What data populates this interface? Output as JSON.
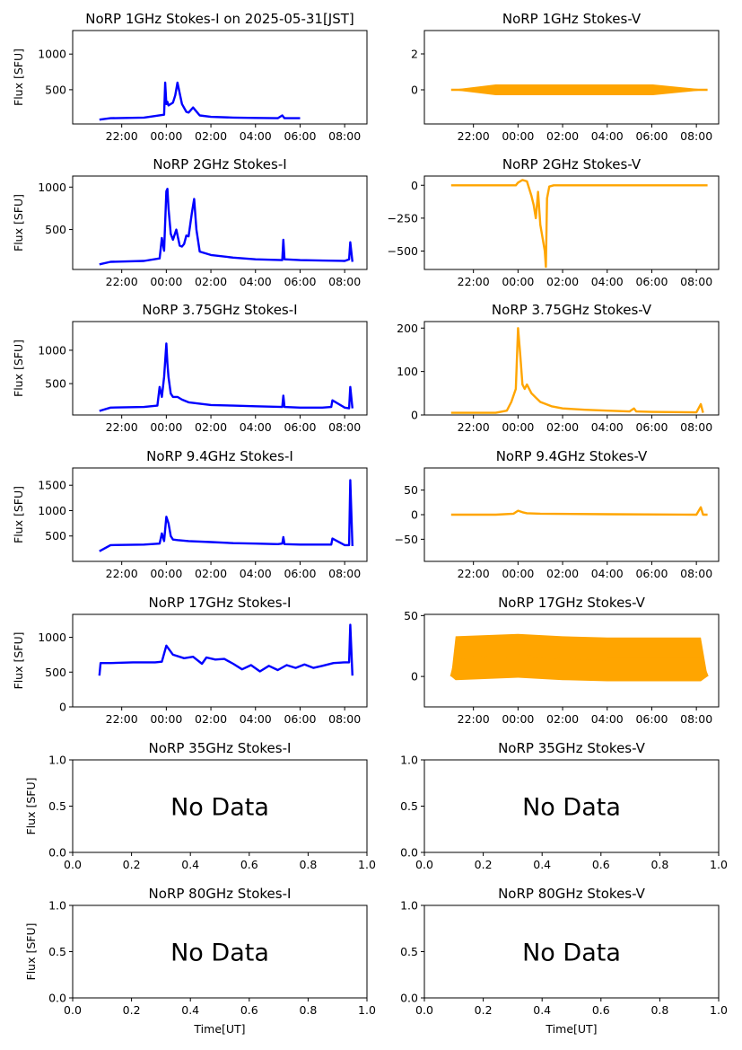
{
  "figure": {
    "x_time_ticks": [
      "22:00",
      "00:00",
      "02:00",
      "04:00",
      "06:00",
      "08:00"
    ],
    "x_time_tick_hours": [
      -2,
      0,
      2,
      4,
      6,
      8
    ],
    "x_time_range_hours": [
      -4.2,
      9.0
    ],
    "x_unit_ticks": [
      "0.0",
      "0.2",
      "0.4",
      "0.6",
      "0.8",
      "1.0"
    ],
    "y_unit_ticks": [
      "0.0",
      "0.5",
      "1.0"
    ],
    "ylabel": "Flux [SFU]",
    "xlabel": "Time[UT]",
    "no_data_text": "No Data",
    "colors": {
      "stokes_i": "#0000ff",
      "stokes_v": "#ffa500"
    }
  },
  "chart_data": [
    {
      "type": "line",
      "title": "NoRP 1GHz Stokes-I on 2025-05-31[JST]",
      "column": "I",
      "row": 0,
      "has_data": true,
      "ylim": [
        20,
        1330
      ],
      "yticks": [
        500,
        1000
      ],
      "series": [
        {
          "name": "Stokes-I",
          "x": [
            -3.0,
            -2.5,
            -1.0,
            -0.1,
            -0.05,
            0.0,
            0.05,
            0.1,
            0.3,
            0.4,
            0.5,
            0.6,
            0.7,
            0.9,
            1.0,
            1.2,
            1.5,
            2.0,
            3.0,
            4.0,
            5.0,
            5.2,
            5.3,
            6.0
          ],
          "y": [
            80,
            100,
            110,
            150,
            600,
            300,
            330,
            280,
            320,
            420,
            600,
            450,
            300,
            190,
            180,
            250,
            140,
            120,
            110,
            105,
            100,
            140,
            100,
            100
          ]
        }
      ]
    },
    {
      "type": "line",
      "title": "NoRP 1GHz Stokes-V",
      "column": "V",
      "row": 0,
      "has_data": true,
      "ylim": [
        -1.9,
        3.3
      ],
      "yticks": [
        0,
        2
      ],
      "series": [
        {
          "name": "Stokes-V",
          "x": [
            -3.0,
            -1.0,
            -0.5,
            0.0,
            0.5,
            1.0,
            2.0,
            4.0,
            6.0,
            6.05,
            8.5
          ],
          "y": [
            0.0,
            0.0,
            0.0,
            0.0,
            0.0,
            0.0,
            0.0,
            0.0,
            0.0,
            0.0,
            0.0
          ]
        }
      ]
    },
    {
      "type": "line",
      "title": "NoRP 2GHz Stokes-I",
      "column": "I",
      "row": 1,
      "has_data": true,
      "ylim": [
        30,
        1130
      ],
      "yticks": [
        500,
        1000
      ],
      "series": [
        {
          "name": "Stokes-I",
          "x": [
            -3.0,
            -2.5,
            -1.0,
            -0.3,
            -0.2,
            -0.1,
            0.0,
            0.05,
            0.1,
            0.2,
            0.3,
            0.45,
            0.6,
            0.7,
            0.8,
            0.9,
            1.0,
            1.15,
            1.25,
            1.35,
            1.5,
            2.0,
            3.0,
            4.0,
            5.2,
            5.25,
            5.3,
            6.0,
            7.0,
            8.0,
            8.2,
            8.25,
            8.35
          ],
          "y": [
            90,
            120,
            130,
            160,
            400,
            250,
            950,
            980,
            750,
            450,
            380,
            500,
            310,
            300,
            330,
            430,
            420,
            700,
            860,
            500,
            240,
            200,
            170,
            150,
            140,
            380,
            150,
            140,
            135,
            130,
            150,
            350,
            120
          ]
        }
      ]
    },
    {
      "type": "line",
      "title": "NoRP 2GHz Stokes-V",
      "column": "V",
      "row": 1,
      "has_data": true,
      "ylim": [
        -640,
        70
      ],
      "yticks": [
        -500,
        -250,
        0
      ],
      "series": [
        {
          "name": "Stokes-V",
          "x": [
            -3.0,
            -1.0,
            -0.1,
            0.0,
            0.2,
            0.4,
            0.6,
            0.7,
            0.8,
            0.9,
            1.0,
            1.1,
            1.2,
            1.25,
            1.3,
            1.4,
            1.6,
            2.0,
            4.0,
            6.0,
            8.0,
            8.5
          ],
          "y": [
            0,
            0,
            0,
            20,
            40,
            30,
            -80,
            -150,
            -250,
            -50,
            -300,
            -400,
            -500,
            -620,
            -100,
            -10,
            0,
            0,
            0,
            0,
            0,
            0
          ]
        }
      ]
    },
    {
      "type": "line",
      "title": "NoRP 3.75GHz Stokes-I",
      "column": "I",
      "row": 2,
      "has_data": true,
      "ylim": [
        30,
        1430
      ],
      "yticks": [
        500,
        1000
      ],
      "series": [
        {
          "name": "Stokes-I",
          "x": [
            -3.0,
            -2.5,
            -1.0,
            -0.4,
            -0.3,
            -0.2,
            -0.1,
            0.0,
            0.05,
            0.1,
            0.2,
            0.3,
            0.5,
            0.7,
            1.0,
            1.5,
            2.0,
            3.0,
            4.0,
            5.2,
            5.25,
            5.3,
            6.0,
            7.0,
            7.4,
            7.45,
            8.0,
            8.2,
            8.25,
            8.35
          ],
          "y": [
            90,
            140,
            150,
            170,
            450,
            300,
            600,
            1100,
            800,
            600,
            350,
            300,
            300,
            260,
            220,
            200,
            180,
            170,
            160,
            150,
            320,
            150,
            140,
            140,
            150,
            250,
            140,
            130,
            450,
            130
          ]
        }
      ]
    },
    {
      "type": "line",
      "title": "NoRP 3.75GHz Stokes-V",
      "column": "V",
      "row": 2,
      "has_data": true,
      "ylim": [
        0,
        215
      ],
      "yticks": [
        0,
        100,
        200
      ],
      "series": [
        {
          "name": "Stokes-V",
          "x": [
            -3.0,
            -1.0,
            -0.5,
            -0.3,
            -0.1,
            0.0,
            0.1,
            0.2,
            0.3,
            0.4,
            0.6,
            0.8,
            1.0,
            1.5,
            2.0,
            3.0,
            4.0,
            5.0,
            5.2,
            5.3,
            6.0,
            8.0,
            8.2,
            8.3
          ],
          "y": [
            5,
            5,
            10,
            30,
            60,
            200,
            140,
            70,
            60,
            70,
            50,
            40,
            30,
            20,
            15,
            12,
            10,
            8,
            15,
            8,
            7,
            6,
            25,
            5
          ]
        }
      ]
    },
    {
      "type": "line",
      "title": "NoRP 9.4GHz Stokes-I",
      "column": "I",
      "row": 3,
      "has_data": true,
      "ylim": [
        0,
        1840
      ],
      "yticks": [
        500,
        1000,
        1500
      ],
      "series": [
        {
          "name": "Stokes-I",
          "x": [
            -3.0,
            -2.5,
            -1.0,
            -0.3,
            -0.2,
            -0.1,
            0.0,
            0.1,
            0.2,
            0.3,
            0.5,
            1.0,
            2.0,
            3.0,
            4.0,
            5.0,
            5.2,
            5.25,
            5.3,
            6.0,
            7.0,
            7.4,
            7.45,
            8.0,
            8.2,
            8.25,
            8.35
          ],
          "y": [
            200,
            320,
            330,
            350,
            550,
            400,
            880,
            750,
            500,
            430,
            420,
            400,
            380,
            360,
            350,
            340,
            350,
            480,
            340,
            330,
            330,
            330,
            450,
            320,
            320,
            1600,
            300
          ]
        }
      ]
    },
    {
      "type": "line",
      "title": "NoRP 9.4GHz Stokes-V",
      "column": "V",
      "row": 3,
      "has_data": true,
      "ylim": [
        -95,
        95
      ],
      "yticks": [
        -50,
        0,
        50
      ],
      "series": [
        {
          "name": "Stokes-V",
          "x": [
            -3.0,
            -1.0,
            -0.2,
            0.0,
            0.2,
            0.4,
            1.0,
            4.0,
            8.0,
            8.2,
            8.3,
            8.5
          ],
          "y": [
            0,
            0,
            2,
            8,
            5,
            3,
            2,
            1,
            0,
            15,
            0,
            0
          ]
        }
      ]
    },
    {
      "type": "line",
      "title": "NoRP 17GHz Stokes-I",
      "column": "I",
      "row": 4,
      "has_data": true,
      "ylim": [
        0,
        1330
      ],
      "yticks": [
        0,
        500,
        1000
      ],
      "series": [
        {
          "name": "Stokes-I",
          "x": [
            -3.0,
            -2.95,
            -2.5,
            -1.5,
            -0.5,
            -0.2,
            0.0,
            0.3,
            0.8,
            1.2,
            1.6,
            1.8,
            2.2,
            2.6,
            3.0,
            3.4,
            3.8,
            4.2,
            4.6,
            5.0,
            5.4,
            5.8,
            6.2,
            6.6,
            7.0,
            7.5,
            8.0,
            8.2,
            8.25,
            8.35
          ],
          "y": [
            450,
            630,
            630,
            640,
            640,
            650,
            880,
            750,
            700,
            720,
            620,
            710,
            680,
            690,
            620,
            540,
            600,
            510,
            590,
            530,
            600,
            560,
            610,
            560,
            590,
            630,
            640,
            640,
            1180,
            450
          ]
        }
      ]
    },
    {
      "type": "line",
      "title": "NoRP 17GHz Stokes-V",
      "column": "V",
      "row": 4,
      "has_data": true,
      "ylim": [
        -25,
        51
      ],
      "yticks": [
        0,
        50
      ],
      "series": [
        {
          "name": "Stokes-V",
          "x": [
            -3.0,
            -2.8,
            0.0,
            2.0,
            4.0,
            6.0,
            8.2,
            8.5
          ],
          "y": [
            0,
            15,
            17,
            15,
            14,
            14,
            14,
            0
          ]
        }
      ]
    },
    {
      "type": "line",
      "title": "NoRP 35GHz Stokes-I",
      "column": "I",
      "row": 5,
      "has_data": false,
      "xlim": [
        0,
        1
      ],
      "ylim": [
        0,
        1
      ]
    },
    {
      "type": "line",
      "title": "NoRP 35GHz Stokes-V",
      "column": "V",
      "row": 5,
      "has_data": false,
      "xlim": [
        0,
        1
      ],
      "ylim": [
        0,
        1
      ]
    },
    {
      "type": "line",
      "title": "NoRP 80GHz Stokes-I",
      "column": "I",
      "row": 6,
      "has_data": false,
      "xlim": [
        0,
        1
      ],
      "ylim": [
        0,
        1
      ]
    },
    {
      "type": "line",
      "title": "NoRP 80GHz Stokes-V",
      "column": "V",
      "row": 6,
      "has_data": false,
      "xlim": [
        0,
        1
      ],
      "ylim": [
        0,
        1
      ]
    }
  ]
}
